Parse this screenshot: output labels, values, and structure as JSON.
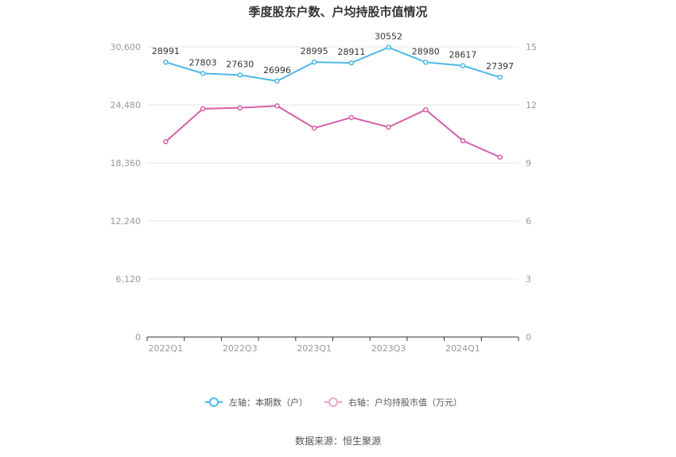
{
  "title": "季度股东户数、户均持股市值情况",
  "source": "数据来源：恒生聚源",
  "legend": {
    "left_label": "左轴：本期数（户）",
    "right_label": "右轴：户均持股市值（万元）"
  },
  "colors": {
    "left_series": "#4db8e8",
    "right_series": "#d660a8",
    "grid": "#e6e6ee",
    "axis": "#333333"
  },
  "chart_data": {
    "type": "line",
    "categories": [
      "2022Q1",
      "2022Q2",
      "2022Q3",
      "2022Q4",
      "2023Q1",
      "2023Q2",
      "2023Q3",
      "2023Q4",
      "2024Q1",
      "2024Q2"
    ],
    "x_tick_labels": [
      "2022Q1",
      "2022Q3",
      "2023Q1",
      "2023Q3",
      "2024Q1"
    ],
    "left_axis": {
      "ticks": [
        "0",
        "6,120",
        "12,240",
        "18,360",
        "24,480",
        "30,600"
      ],
      "ylim": [
        0,
        30600
      ]
    },
    "right_axis": {
      "ticks": [
        "0",
        "3",
        "6",
        "9",
        "12",
        "15"
      ],
      "ylim": [
        0,
        15
      ]
    },
    "series": [
      {
        "name": "左轴：本期数（户）",
        "axis": "left",
        "values": [
          28991,
          27803,
          27630,
          26996,
          28995,
          28911,
          30552,
          28980,
          28617,
          27397
        ],
        "labels": [
          "28991",
          "27803",
          "27630",
          "26996",
          "28995",
          "28911",
          "30552",
          "28980",
          "28617",
          "27397"
        ]
      },
      {
        "name": "右轴：户均持股市值（万元）",
        "axis": "right",
        "values": [
          10.1,
          11.8,
          11.85,
          11.95,
          10.8,
          11.35,
          10.85,
          11.75,
          10.15,
          9.3
        ]
      }
    ],
    "grid": true,
    "legend_position": "bottom"
  }
}
